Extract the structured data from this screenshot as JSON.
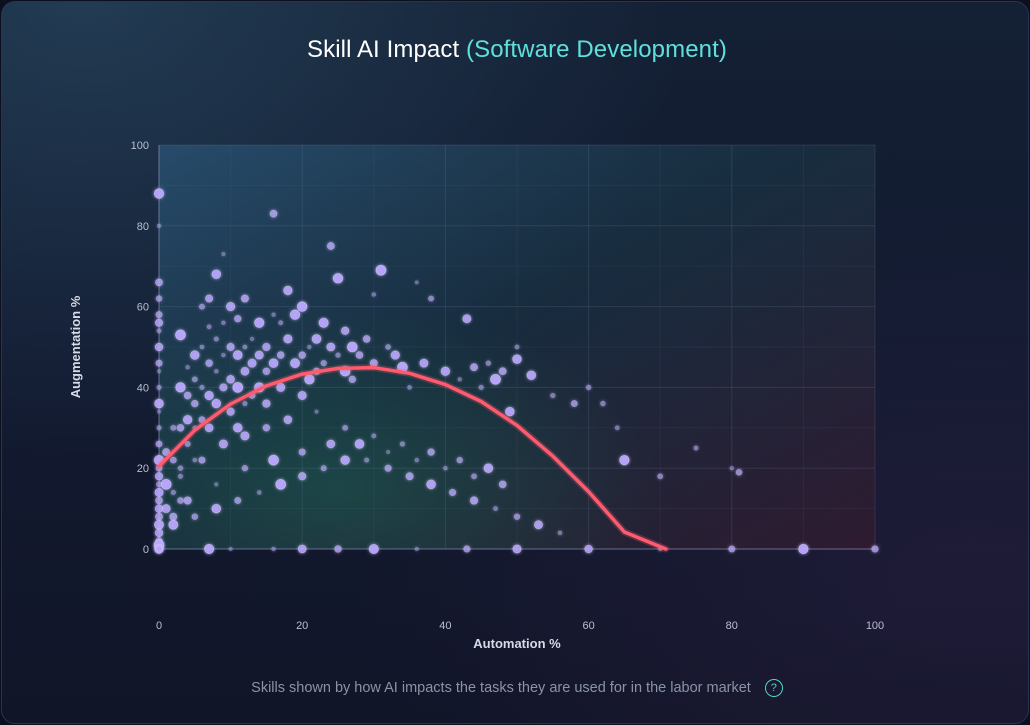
{
  "chart_data": {
    "type": "scatter",
    "title": "Skill AI Impact",
    "subtitle": "(Software Development)",
    "xlabel": "Automation %",
    "ylabel": "Augmentation %",
    "xlim": [
      0,
      100
    ],
    "ylim": [
      0,
      100
    ],
    "x_ticks": [
      "0",
      "20",
      "40",
      "60",
      "80",
      "100"
    ],
    "y_ticks": [
      "0",
      "20",
      "40",
      "60",
      "80",
      "100"
    ],
    "grid": true,
    "legend": "none",
    "point_color": "#b9a6ff",
    "trend_color": "#ff5a6e",
    "trend_line": {
      "type": "quadratic",
      "x": [
        0,
        5,
        10,
        15,
        20,
        25,
        30,
        35,
        40,
        45,
        50,
        55,
        60,
        65,
        70.8
      ],
      "y": [
        20.5,
        29.4,
        35.9,
        40.4,
        43.3,
        44.7,
        44.9,
        43.5,
        40.7,
        36.5,
        30.6,
        23.0,
        14.2,
        4.2,
        0
      ]
    },
    "series": [
      {
        "x": [
          0,
          0,
          0,
          0,
          0,
          0,
          0,
          0,
          0,
          0,
          0,
          0,
          0,
          0,
          0,
          0,
          0,
          0,
          0,
          0,
          0,
          0,
          0,
          0,
          0,
          0,
          0,
          0,
          1,
          1,
          1,
          2,
          2,
          2,
          2,
          3,
          3,
          3,
          3,
          3,
          4,
          4,
          4,
          4,
          5,
          5,
          5,
          5,
          5,
          6,
          6,
          6,
          6,
          7,
          7,
          7,
          7,
          7,
          8,
          8,
          8,
          8,
          9,
          9,
          9,
          9,
          10,
          10,
          10,
          10,
          11,
          11,
          11,
          11,
          12,
          12,
          12,
          12,
          13,
          13,
          13,
          14,
          14,
          14,
          15,
          15,
          15,
          16,
          16,
          16,
          17,
          17,
          17,
          18,
          18,
          19,
          19,
          20,
          20,
          20,
          21,
          21,
          22,
          22,
          23,
          23,
          24,
          24,
          25,
          25,
          26,
          26,
          27,
          27,
          28,
          29,
          30,
          30,
          31,
          32,
          33,
          34,
          35,
          36,
          37,
          38,
          40,
          42,
          43,
          44,
          45,
          46,
          47,
          48,
          49,
          50,
          50,
          52,
          55,
          58,
          60,
          62,
          64,
          65,
          70,
          75,
          80,
          81,
          0,
          7,
          10,
          16,
          20,
          25,
          30,
          36,
          43,
          50,
          60,
          70,
          80,
          90,
          100,
          3,
          6,
          9,
          12,
          15,
          18,
          22,
          26,
          30,
          34,
          38,
          42,
          46,
          4,
          8,
          12,
          16,
          20,
          24,
          28,
          32,
          36,
          40,
          44,
          48,
          2,
          5,
          8,
          11,
          14,
          17,
          20,
          23,
          26,
          29,
          32,
          35,
          38,
          41,
          44,
          47,
          50,
          53,
          56
        ],
        "y": [
          88,
          80,
          66,
          62,
          58,
          56,
          54,
          50,
          46,
          44,
          40,
          36,
          34,
          30,
          26,
          22,
          20,
          18,
          16,
          14,
          12,
          10,
          8,
          6,
          4,
          2,
          1,
          0,
          24,
          16,
          10,
          30,
          22,
          14,
          8,
          53,
          40,
          30,
          20,
          12,
          45,
          38,
          32,
          26,
          48,
          42,
          36,
          30,
          22,
          60,
          50,
          40,
          32,
          62,
          55,
          46,
          38,
          30,
          68,
          52,
          44,
          36,
          73,
          56,
          48,
          40,
          60,
          50,
          42,
          34,
          57,
          48,
          40,
          30,
          62,
          50,
          44,
          36,
          52,
          46,
          38,
          56,
          48,
          40,
          50,
          44,
          36,
          83,
          58,
          46,
          56,
          48,
          40,
          64,
          52,
          58,
          46,
          60,
          48,
          38,
          50,
          42,
          52,
          44,
          56,
          46,
          75,
          50,
          67,
          48,
          54,
          44,
          50,
          42,
          48,
          52,
          63,
          46,
          69,
          50,
          48,
          45,
          40,
          66,
          46,
          62,
          44,
          42,
          57,
          45,
          40,
          46,
          42,
          44,
          34,
          50,
          47,
          43,
          38,
          36,
          40,
          36,
          30,
          22,
          18,
          25,
          20,
          19,
          0,
          0,
          0,
          0,
          0,
          0,
          0,
          0,
          0,
          0,
          0,
          0,
          0,
          0,
          0,
          18,
          22,
          26,
          28,
          30,
          32,
          34,
          30,
          28,
          26,
          24,
          22,
          20,
          12,
          16,
          20,
          22,
          24,
          26,
          26,
          24,
          22,
          20,
          18,
          16,
          6,
          8,
          10,
          12,
          14,
          16,
          18,
          20,
          22,
          22,
          20,
          18,
          16,
          14,
          12,
          10,
          8,
          6,
          4
        ]
      }
    ]
  },
  "footer": {
    "caption": "Skills shown by how AI impacts the tasks they are used for in the labor market",
    "help_icon": "?"
  }
}
